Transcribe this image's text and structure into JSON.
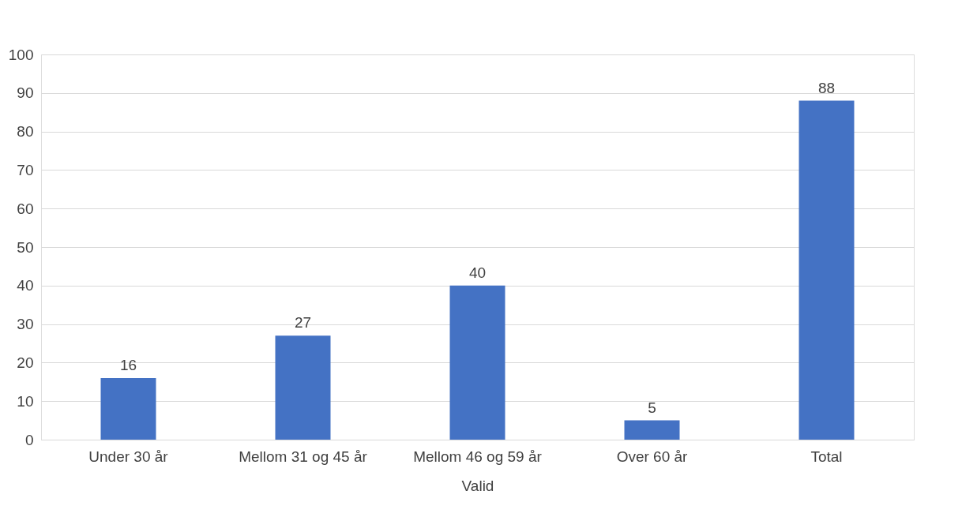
{
  "chart_data": {
    "type": "bar",
    "xlabel": "Valid",
    "categories": [
      "Under 30 år",
      "Mellom 31 og 45 år",
      "Mellom 46 og 59 år",
      "Over 60 år",
      "Total"
    ],
    "values": [
      16,
      27,
      40,
      5,
      88
    ],
    "color": "#4472c4",
    "ylim": [
      0,
      100
    ],
    "yticks": [
      0,
      10,
      20,
      30,
      40,
      50,
      60,
      70,
      80,
      90,
      100
    ],
    "grid": "y",
    "data_labels": true
  }
}
